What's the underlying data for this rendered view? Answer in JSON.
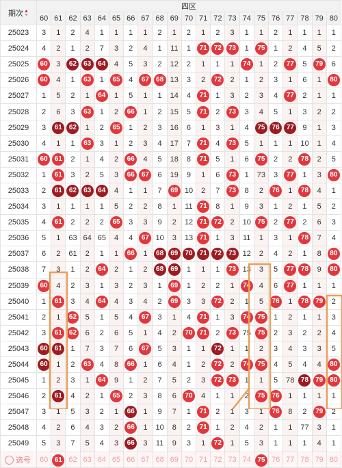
{
  "header": {
    "period_label": "期次",
    "sort_up": "▲",
    "sort_down": "▼",
    "group_label": "四区",
    "columns": [
      "60",
      "61",
      "62",
      "63",
      "64",
      "65",
      "66",
      "67",
      "68",
      "69",
      "70",
      "71",
      "72",
      "73",
      "74",
      "75",
      "76",
      "77",
      "78",
      "79",
      "80"
    ]
  },
  "rows": [
    {
      "period": "25023",
      "cells": [
        "3",
        "1",
        "2",
        "4",
        "1",
        "1",
        "1",
        "1",
        "2",
        "1",
        "2",
        "1",
        "2",
        "3",
        "1",
        "1",
        "2",
        "1",
        "1",
        "1",
        "1"
      ]
    },
    {
      "period": "25024",
      "cells": [
        "4",
        "2",
        "1",
        "2",
        "7",
        "3",
        "2",
        "4",
        "1",
        "11",
        "1",
        "71",
        "72",
        "73",
        "1",
        "75",
        "1",
        "2",
        "4",
        "5",
        "2"
      ]
    },
    {
      "period": "25025",
      "cells": [
        "60",
        "3",
        "62",
        "63",
        "64",
        "4",
        "5",
        "3",
        "2",
        "12",
        "2",
        "1",
        "1",
        "1",
        "74",
        "1",
        "2",
        "77",
        "5",
        "79",
        "6"
      ]
    },
    {
      "period": "25026",
      "cells": [
        "60",
        "4",
        "1",
        "63",
        "1",
        "65",
        "4",
        "67",
        "68",
        "13",
        "3",
        "2",
        "72",
        "2",
        "1",
        "2",
        "3",
        "1",
        "6",
        "1",
        "80"
      ]
    },
    {
      "period": "25027",
      "cells": [
        "1",
        "5",
        "2",
        "1",
        "64",
        "1",
        "5",
        "1",
        "1",
        "14",
        "4",
        "71",
        "1",
        "3",
        "2",
        "3",
        "4",
        "77",
        "2",
        "1",
        "1"
      ]
    },
    {
      "period": "25028",
      "cells": [
        "2",
        "6",
        "3",
        "63",
        "1",
        "2",
        "66",
        "1",
        "2",
        "15",
        "5",
        "71",
        "2",
        "73",
        "3",
        "4",
        "5",
        "1",
        "3",
        "2",
        "2"
      ]
    },
    {
      "period": "25029",
      "cells": [
        "3",
        "61",
        "62",
        "1",
        "2",
        "65",
        "1",
        "2",
        "3",
        "16",
        "6",
        "1",
        "3",
        "1",
        "4",
        "75",
        "76",
        "77",
        "9",
        "1",
        "3"
      ]
    },
    {
      "period": "25030",
      "cells": [
        "4",
        "1",
        "1",
        "63",
        "3",
        "1",
        "2",
        "3",
        "4",
        "17",
        "7",
        "71",
        "4",
        "73",
        "5",
        "1",
        "1",
        "1",
        "10",
        "1",
        "4"
      ]
    },
    {
      "period": "25031",
      "cells": [
        "60",
        "61",
        "2",
        "1",
        "4",
        "2",
        "66",
        "4",
        "5",
        "18",
        "8",
        "71",
        "5",
        "1",
        "6",
        "75",
        "2",
        "2",
        "78",
        "2",
        "5"
      ]
    },
    {
      "period": "25032",
      "cells": [
        "1",
        "61",
        "3",
        "2",
        "5",
        "3",
        "66",
        "67",
        "6",
        "19",
        "9",
        "1",
        "6",
        "73",
        "1",
        "73",
        "3",
        "77",
        "1",
        "3",
        "80"
      ]
    },
    {
      "period": "25033",
      "cells": [
        "2",
        "61",
        "62",
        "63",
        "64",
        "4",
        "1",
        "1",
        "7",
        "69",
        "10",
        "2",
        "7",
        "73",
        "8",
        "2",
        "76",
        "1",
        "78",
        "4",
        "1"
      ]
    },
    {
      "period": "25034",
      "cells": [
        "3",
        "1",
        "1",
        "1",
        "1",
        "5",
        "2",
        "2",
        "8",
        "1",
        "11",
        "71",
        "8",
        "1",
        "9",
        "3",
        "1",
        "2",
        "1",
        "5",
        "2"
      ]
    },
    {
      "period": "25035",
      "cells": [
        "4",
        "61",
        "2",
        "2",
        "2",
        "65",
        "3",
        "3",
        "9",
        "2",
        "12",
        "71",
        "72",
        "2",
        "10",
        "75",
        "2",
        "77",
        "2",
        "6",
        "3"
      ]
    },
    {
      "period": "25036",
      "cells": [
        "5",
        "1",
        "63",
        "64",
        "65",
        "4",
        "4",
        "67",
        "10",
        "3",
        "13",
        "71",
        "1",
        "3",
        "11",
        "1",
        "3",
        "1",
        "78",
        "7",
        "4"
      ]
    },
    {
      "period": "25037",
      "cells": [
        "6",
        "2",
        "61",
        "2",
        "1",
        "1",
        "66",
        "1",
        "68",
        "69",
        "70",
        "71",
        "72",
        "73",
        "12",
        "2",
        "4",
        "2",
        "1",
        "8",
        "80"
      ]
    },
    {
      "period": "25038",
      "cells": [
        "7",
        "3",
        "1",
        "2",
        "64",
        "2",
        "1",
        "2",
        "68",
        "69",
        "1",
        "1",
        "1",
        "73",
        "13",
        "3",
        "5",
        "77",
        "78",
        "9",
        "80"
      ]
    },
    {
      "period": "25039",
      "cells": [
        "60",
        "4",
        "2",
        "3",
        "1",
        "3",
        "2",
        "3",
        "1",
        "69",
        "1",
        "2",
        "2",
        "1",
        "74",
        "4",
        "6",
        "77",
        "1",
        "1",
        "1"
      ]
    },
    {
      "period": "25040",
      "cells": [
        "1",
        "61",
        "3",
        "4",
        "64",
        "4",
        "3",
        "4",
        "2",
        "69",
        "3",
        "3",
        "72",
        "2",
        "1",
        "5",
        "76",
        "1",
        "78",
        "79",
        "2"
      ]
    },
    {
      "period": "25041",
      "cells": [
        "2",
        "1",
        "62",
        "5",
        "1",
        "5",
        "4",
        "67",
        "3",
        "1",
        "4",
        "71",
        "1",
        "3",
        "74",
        "75",
        "1",
        "2",
        "1",
        "1",
        "3"
      ]
    },
    {
      "period": "25042",
      "cells": [
        "3",
        "61",
        "62",
        "6",
        "2",
        "6",
        "5",
        "1",
        "4",
        "2",
        "70",
        "71",
        "2",
        "73",
        "75",
        "75",
        "2",
        "3",
        "2",
        "2",
        "4"
      ]
    },
    {
      "period": "25043",
      "cells": [
        "60",
        "61",
        "1",
        "7",
        "3",
        "7",
        "6",
        "67",
        "5",
        "3",
        "1",
        "1",
        "72",
        "1",
        "1",
        "2",
        "3",
        "4",
        "3",
        "3",
        "5"
      ]
    },
    {
      "period": "25044",
      "cells": [
        "60",
        "1",
        "2",
        "63",
        "4",
        "8",
        "66",
        "1",
        "6",
        "4",
        "1",
        "2",
        "72",
        "2",
        "74",
        "75",
        "4",
        "5",
        "4",
        "4",
        "80"
      ]
    },
    {
      "period": "25045",
      "cells": [
        "1",
        "2",
        "3",
        "1",
        "64",
        "9",
        "1",
        "2",
        "7",
        "5",
        "2",
        "3",
        "72",
        "73",
        "1",
        "1",
        "5",
        "78",
        "78",
        "79",
        "80"
      ]
    },
    {
      "period": "25046",
      "cells": [
        "2",
        "61",
        "4",
        "2",
        "1",
        "65",
        "2",
        "3",
        "8",
        "6",
        "70",
        "4",
        "1",
        "1",
        "2",
        "75",
        "76",
        "1",
        "1",
        "1",
        "1"
      ]
    },
    {
      "period": "25047",
      "cells": [
        "3",
        "1",
        "5",
        "3",
        "2",
        "1",
        "66",
        "1",
        "9",
        "7",
        "1",
        "71",
        "2",
        "1",
        "3",
        "1",
        "76",
        "8",
        "2",
        "79",
        "2"
      ]
    },
    {
      "period": "25048",
      "cells": [
        "4",
        "2",
        "6",
        "4",
        "3",
        "2",
        "66",
        "1",
        "10",
        "8",
        "2",
        "71",
        "1",
        "2",
        "4",
        "2",
        "1",
        "1",
        "77",
        "3",
        "1"
      ]
    },
    {
      "period": "25049",
      "cells": [
        "5",
        "3",
        "7",
        "5",
        "4",
        "3",
        "66",
        "3",
        "11",
        "9",
        "3",
        "1",
        "72",
        "1",
        "5",
        "3",
        "1",
        "1",
        "1",
        "4",
        "1"
      ]
    }
  ],
  "select_row": {
    "label": "选号",
    "nums": [
      "60",
      "61",
      "62",
      "63",
      "64",
      "65",
      "66",
      "67",
      "68",
      "69",
      "70",
      "71",
      "72",
      "73",
      "74",
      "75",
      "76",
      "77",
      "78",
      "79",
      "80"
    ]
  }
}
